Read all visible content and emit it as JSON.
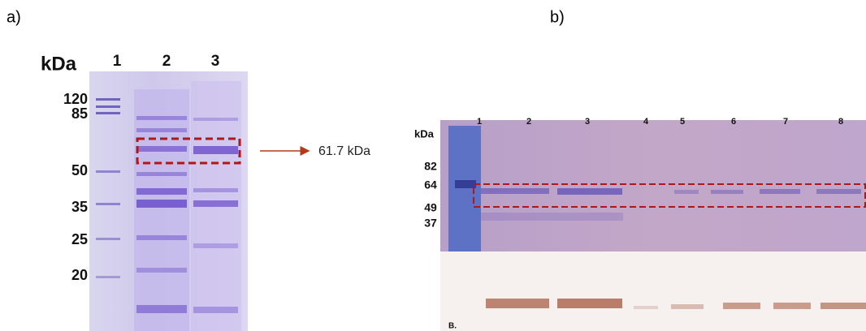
{
  "panel_a": {
    "label": "a)",
    "unit": "kDa",
    "lanes": [
      "1",
      "2",
      "3"
    ],
    "markers": [
      "120",
      "85",
      "50",
      "35",
      "25",
      "20"
    ],
    "annotation": "61.7 kDa"
  },
  "panel_b": {
    "label": "b)",
    "unit": "kDa",
    "lanes": [
      "1",
      "2",
      "3",
      "4",
      "5",
      "6",
      "7",
      "8"
    ],
    "markers": [
      "82",
      "64",
      "49",
      "37"
    ],
    "blot_label": "B."
  }
}
